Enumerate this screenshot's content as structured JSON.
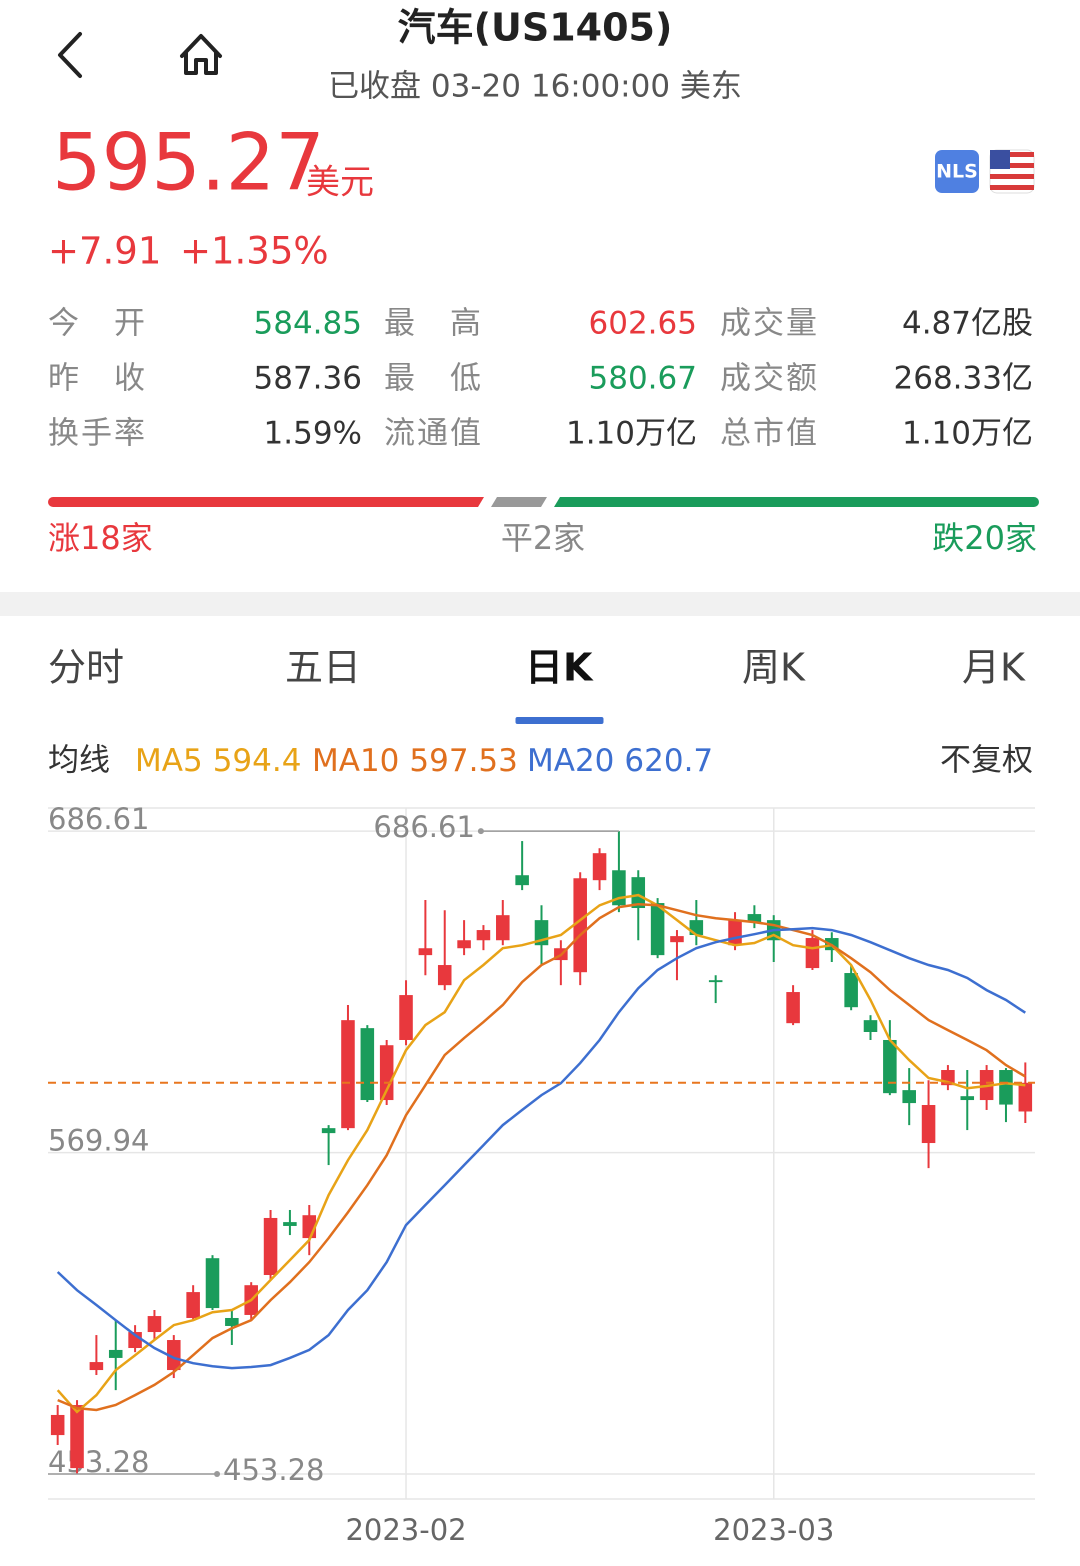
{
  "header": {
    "title": "汽车(US1405)",
    "subtitle": "已收盘 03-20 16:00:00 美东",
    "badge": "NLS"
  },
  "quote": {
    "price": "595.27",
    "unit": "美元",
    "change": "+7.91",
    "change_pct": "+1.35%",
    "color": "#e8383d"
  },
  "stats": {
    "rows": [
      [
        {
          "label": "今开",
          "value": "584.85",
          "color": "#1a9c5b"
        },
        {
          "label": "最高",
          "value": "602.65",
          "color": "#e8383d"
        },
        {
          "label": "成交量",
          "value": "4.87亿股",
          "color": "#333333"
        }
      ],
      [
        {
          "label": "昨收",
          "value": "587.36",
          "color": "#333333"
        },
        {
          "label": "最低",
          "value": "580.67",
          "color": "#1a9c5b"
        },
        {
          "label": "成交额",
          "value": "268.33亿",
          "color": "#333333"
        }
      ],
      [
        {
          "label": "换手率",
          "value": "1.59%",
          "color": "#333333"
        },
        {
          "label": "流通值",
          "value": "1.10万亿",
          "color": "#333333"
        },
        {
          "label": "总市值",
          "value": "1.10万亿",
          "color": "#333333"
        }
      ]
    ]
  },
  "breadth": {
    "up": "涨18家",
    "flat": "平2家",
    "down": "跌20家"
  },
  "tabs": {
    "items": [
      "分时",
      "五日",
      "日K",
      "周K",
      "月K"
    ],
    "active": 2
  },
  "indicator": {
    "label": "均线",
    "adjust": "不复权"
  },
  "chart_data": {
    "type": "candlestick",
    "categories": [
      null,
      null,
      null,
      null,
      null,
      null,
      null,
      null,
      null,
      null,
      null,
      null,
      null,
      null,
      null,
      null,
      null,
      null,
      "2023-02",
      null,
      null,
      null,
      null,
      null,
      null,
      null,
      null,
      null,
      null,
      null,
      null,
      null,
      null,
      null,
      null,
      null,
      null,
      "2023-03",
      null,
      null,
      null,
      null,
      null,
      null,
      null,
      null,
      null,
      null,
      null,
      null,
      null
    ],
    "open": [
      467.4,
      455.4,
      491.0,
      498.3,
      499.0,
      504.8,
      491.0,
      509.9,
      531.6,
      509.9,
      511.0,
      525.5,
      544.7,
      538.9,
      578.8,
      578.8,
      615.1,
      589.0,
      610.8,
      641.6,
      630.7,
      644.1,
      647.0,
      647.0,
      670.6,
      654.3,
      639.8,
      635.4,
      668.8,
      672.4,
      669.9,
      660.5,
      646.3,
      654.3,
      632.5,
      645.2,
      656.5,
      654.3,
      616.9,
      636.9,
      647.8,
      635.1,
      618.0,
      610.8,
      592.6,
      573.4,
      594.4,
      590.4,
      589.0,
      599.9,
      584.85
    ],
    "high": [
      478.3,
      480.1,
      503.7,
      509.1,
      507.3,
      512.8,
      503.7,
      521.8,
      532.7,
      512.8,
      522.9,
      549.1,
      549.1,
      550.9,
      579.9,
      623.5,
      616.2,
      610.8,
      632.5,
      661.6,
      657.9,
      654.3,
      652.5,
      661.6,
      683.0,
      659.7,
      647.0,
      671.7,
      680.4,
      686.61,
      672.4,
      662.3,
      650.7,
      661.6,
      634.3,
      657.2,
      659.7,
      656.1,
      630.7,
      650.7,
      649.9,
      638.0,
      619.8,
      618.0,
      600.6,
      596.2,
      601.7,
      599.9,
      601.7,
      600.6,
      602.65
    ],
    "low": [
      463.8,
      453.28,
      489.2,
      483.7,
      497.5,
      501.9,
      488.1,
      509.1,
      512.8,
      500.1,
      509.1,
      523.7,
      540.0,
      532.7,
      565.4,
      578.1,
      588.3,
      587.2,
      608.9,
      634.3,
      628.9,
      641.6,
      643.4,
      645.2,
      665.2,
      638.0,
      630.7,
      630.7,
      665.2,
      657.2,
      647.0,
      640.5,
      632.5,
      645.2,
      624.2,
      643.4,
      651.4,
      639.1,
      616.2,
      636.2,
      639.1,
      621.6,
      610.8,
      590.8,
      579.9,
      564.3,
      592.6,
      578.1,
      585.4,
      581.0,
      580.67
    ],
    "close": [
      474.7,
      478.3,
      493.9,
      495.4,
      504.8,
      510.6,
      501.9,
      519.3,
      513.5,
      507.0,
      521.8,
      546.2,
      543.3,
      547.2,
      577.0,
      618.0,
      589.0,
      608.9,
      627.1,
      644.1,
      638.0,
      647.0,
      650.7,
      656.1,
      667.0,
      645.2,
      644.1,
      669.5,
      678.6,
      659.7,
      658.7,
      641.6,
      648.5,
      648.9,
      631.8,
      654.3,
      653.6,
      647.0,
      628.2,
      647.8,
      643.4,
      622.7,
      613.7,
      591.5,
      587.9,
      587.2,
      599.9,
      589.0,
      599.9,
      587.36,
      595.27
    ],
    "series": [
      {
        "name": "MA5",
        "color": "#e8a317",
        "values": [
          483.7,
          475.8,
          481.9,
          491.0,
          496.4,
          501.9,
          507.3,
          509.1,
          512.0,
          512.8,
          516.4,
          523.7,
          530.9,
          538.2,
          554.5,
          567.2,
          578.1,
          592.6,
          607.1,
          616.2,
          620.9,
          632.5,
          638.0,
          644.1,
          645.2,
          647.0,
          648.9,
          654.3,
          659.7,
          662.3,
          663.4,
          659.7,
          654.3,
          648.9,
          647.0,
          645.2,
          646.0,
          648.9,
          645.2,
          644.1,
          645.2,
          638.0,
          625.3,
          610.8,
          603.5,
          597.0,
          595.5,
          593.3,
          594.1,
          595.1,
          594.4
        ]
      },
      {
        "name": "MA10",
        "color": "#e0701e",
        "values": [
          480.1,
          477.2,
          476.5,
          478.3,
          481.9,
          485.6,
          490.3,
          496.4,
          502.6,
          506.2,
          509.1,
          516.4,
          522.9,
          530.2,
          538.9,
          548.3,
          558.1,
          569.0,
          583.5,
          594.4,
          605.3,
          611.5,
          617.3,
          623.5,
          631.8,
          638.0,
          641.6,
          648.9,
          655.0,
          659.0,
          660.1,
          659.7,
          657.9,
          656.1,
          655.0,
          654.3,
          653.6,
          652.5,
          650.7,
          648.9,
          645.2,
          640.5,
          635.4,
          628.9,
          623.5,
          618.0,
          614.4,
          610.8,
          607.1,
          601.7,
          597.53
        ]
      },
      {
        "name": "MA20",
        "color": "#3d6fd0",
        "values": [
          526.6,
          520.0,
          514.6,
          509.1,
          503.7,
          499.0,
          495.4,
          493.5,
          492.4,
          491.7,
          492.1,
          492.8,
          495.4,
          498.3,
          503.7,
          512.8,
          520.0,
          530.2,
          543.6,
          550.9,
          558.1,
          565.4,
          572.6,
          579.9,
          585.4,
          590.8,
          595.1,
          602.4,
          610.8,
          620.9,
          629.6,
          636.2,
          640.5,
          644.1,
          646.3,
          647.8,
          649.2,
          650.7,
          651.0,
          651.4,
          650.7,
          648.9,
          646.3,
          643.4,
          640.5,
          638.0,
          636.2,
          633.3,
          628.9,
          625.3,
          620.7
        ]
      }
    ],
    "ylim": [
      444.2,
      695.0
    ],
    "yticks": [
      686.61,
      569.94,
      453.28
    ],
    "up_color": "#e8383d",
    "down_color": "#1a9c5b",
    "last_price_color": "#e8761e",
    "grid": true
  }
}
